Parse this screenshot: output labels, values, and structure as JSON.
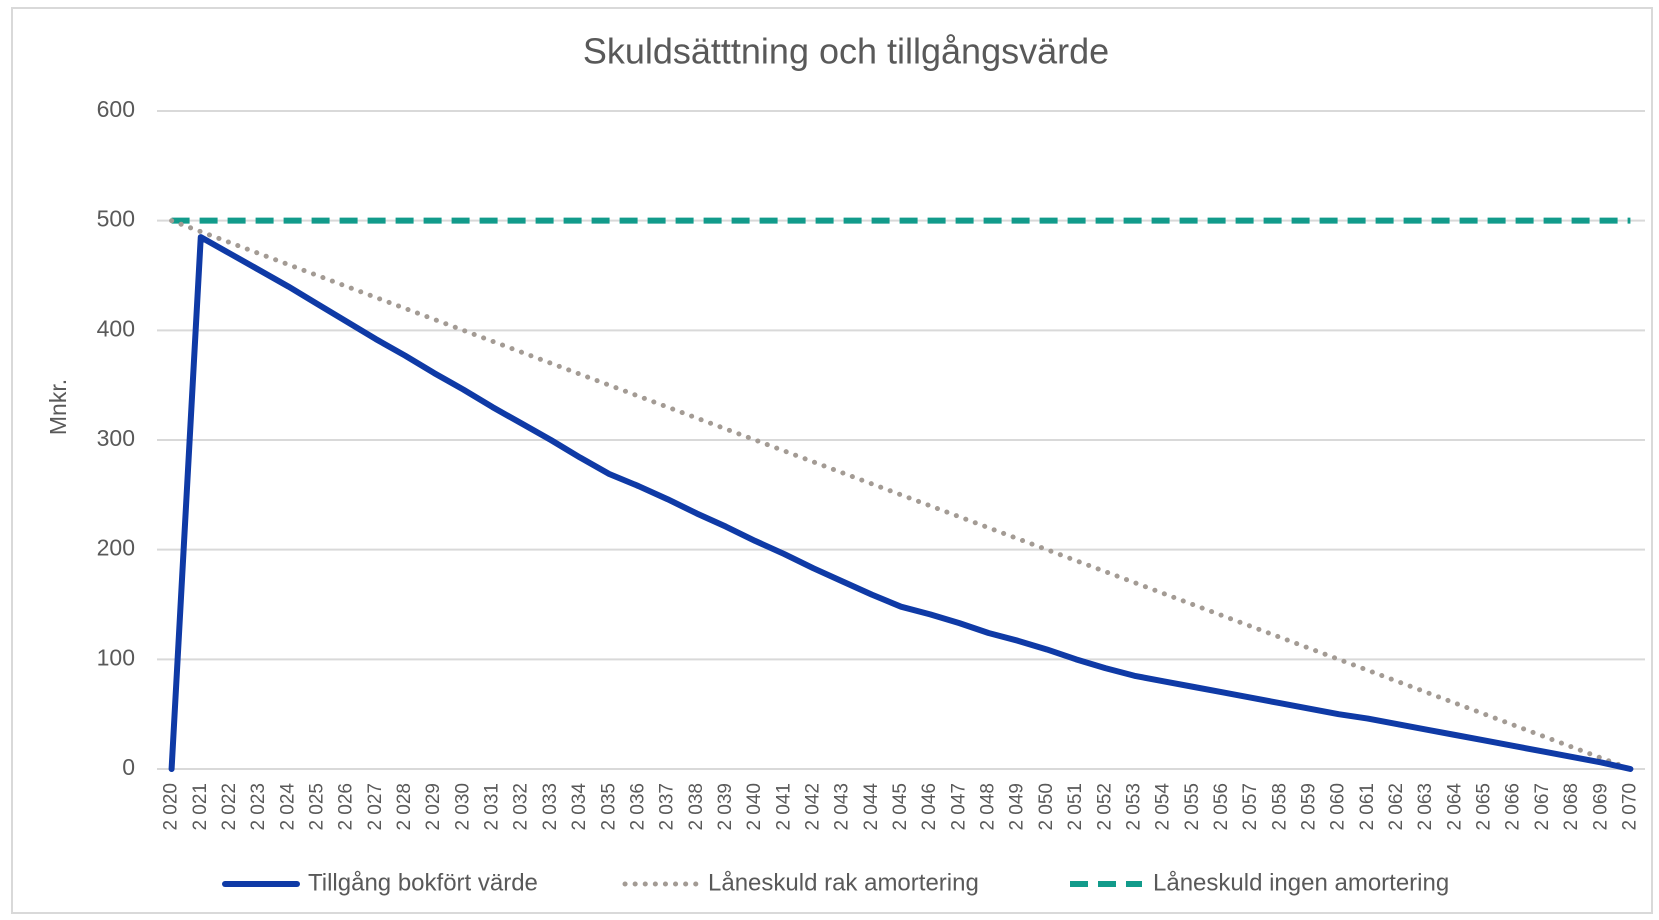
{
  "chart_data": {
    "type": "line",
    "title": "Skuldsätttning och tillgångsvärde",
    "y_label": "Mnkr.",
    "categories": [
      "2 020",
      "2 021",
      "2 022",
      "2 023",
      "2 024",
      "2 025",
      "2 026",
      "2 027",
      "2 028",
      "2 029",
      "2 030",
      "2 031",
      "2 032",
      "2 033",
      "2 034",
      "2 035",
      "2 036",
      "2 037",
      "2 038",
      "2 039",
      "2 040",
      "2 041",
      "2 042",
      "2 043",
      "2 044",
      "2 045",
      "2 046",
      "2 047",
      "2 048",
      "2 049",
      "2 050",
      "2 051",
      "2 052",
      "2 053",
      "2 054",
      "2 055",
      "2 056",
      "2 057",
      "2 058",
      "2 059",
      "2 060",
      "2 061",
      "2 062",
      "2 063",
      "2 064",
      "2 065",
      "2 066",
      "2 067",
      "2 068",
      "2 069",
      "2 070"
    ],
    "series": [
      {
        "name": "Tillgång bokfört värde",
        "color": "#0f3aa6",
        "line_style": "solid",
        "values": [
          0,
          485,
          470,
          455,
          440,
          424,
          408,
          392,
          377,
          361,
          346,
          330,
          315,
          300,
          284,
          269,
          258,
          246,
          233,
          221,
          208,
          196,
          183,
          171,
          159,
          148,
          141,
          133,
          124,
          117,
          109,
          100,
          92,
          85,
          80,
          75,
          70,
          65,
          60,
          55,
          50,
          46,
          41,
          36,
          31,
          26,
          21,
          16,
          11,
          6,
          0
        ]
      },
      {
        "name": "Låneskuld rak amortering",
        "color": "#a39b94",
        "line_style": "dotted",
        "values": [
          500,
          490,
          480,
          470,
          460,
          450,
          440,
          430,
          420,
          410,
          400,
          390,
          380,
          370,
          360,
          350,
          340,
          330,
          320,
          310,
          300,
          290,
          280,
          270,
          260,
          250,
          240,
          230,
          220,
          210,
          200,
          190,
          180,
          170,
          160,
          150,
          140,
          130,
          120,
          110,
          100,
          90,
          80,
          70,
          60,
          50,
          40,
          30,
          20,
          10,
          0
        ]
      },
      {
        "name": "Låneskuld ingen amortering",
        "color": "#129b8b",
        "line_style": "dashed",
        "values": [
          500,
          500,
          500,
          500,
          500,
          500,
          500,
          500,
          500,
          500,
          500,
          500,
          500,
          500,
          500,
          500,
          500,
          500,
          500,
          500,
          500,
          500,
          500,
          500,
          500,
          500,
          500,
          500,
          500,
          500,
          500,
          500,
          500,
          500,
          500,
          500,
          500,
          500,
          500,
          500,
          500,
          500,
          500,
          500,
          500,
          500,
          500,
          500,
          500,
          500,
          500
        ]
      }
    ],
    "ylim": [
      0,
      600
    ],
    "yticks": [
      0,
      100,
      200,
      300,
      400,
      500,
      600
    ],
    "grid": true,
    "legend": "bottom"
  }
}
